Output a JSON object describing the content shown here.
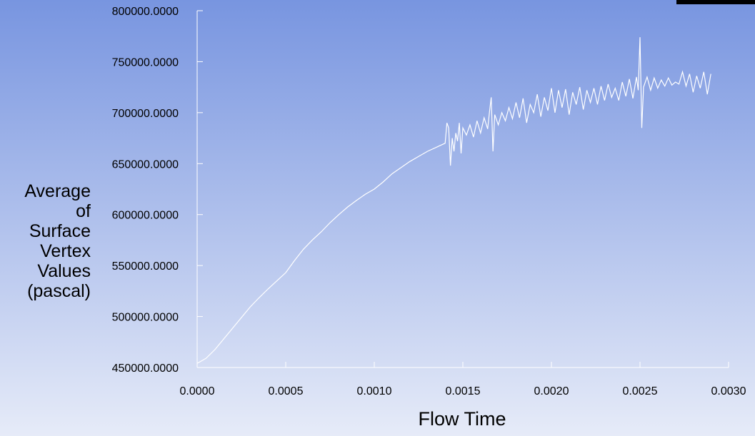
{
  "chart_data": {
    "type": "line",
    "x_label": "Flow Time",
    "y_label": [
      "Average",
      "of",
      "Surface",
      "Vertex",
      "Values",
      "(pascal)"
    ],
    "color": "#ffffff",
    "x": [
      0,
      5e-05,
      0.0001,
      0.00015,
      0.0002,
      0.00025,
      0.0003,
      0.00035,
      0.0004,
      0.00045,
      0.0005,
      0.00055,
      0.0006,
      0.00065,
      0.0007,
      0.00075,
      0.0008,
      0.00085,
      0.0009,
      0.00095,
      0.001,
      0.00105,
      0.0011,
      0.00115,
      0.0012,
      0.00125,
      0.0013,
      0.00135,
      0.0014,
      0.00141,
      0.00142,
      0.00143,
      0.00144,
      0.00145,
      0.00146,
      0.00147,
      0.00148,
      0.00149,
      0.0015,
      0.00152,
      0.00154,
      0.00156,
      0.00158,
      0.0016,
      0.00162,
      0.00164,
      0.00165,
      0.00166,
      0.00167,
      0.00168,
      0.0017,
      0.00172,
      0.00174,
      0.00176,
      0.00178,
      0.0018,
      0.00182,
      0.00184,
      0.00186,
      0.00188,
      0.0019,
      0.00192,
      0.00194,
      0.00196,
      0.00198,
      0.002,
      0.00202,
      0.00204,
      0.00206,
      0.00208,
      0.0021,
      0.00212,
      0.00214,
      0.00216,
      0.00218,
      0.0022,
      0.00222,
      0.00224,
      0.00226,
      0.00228,
      0.0023,
      0.00232,
      0.00234,
      0.00236,
      0.00238,
      0.0024,
      0.00242,
      0.00244,
      0.00246,
      0.00248,
      0.00249,
      0.0025,
      0.00251,
      0.00252,
      0.00254,
      0.00256,
      0.00258,
      0.0026,
      0.00262,
      0.00264,
      0.00266,
      0.00268,
      0.0027,
      0.00272,
      0.00274,
      0.00276,
      0.00278,
      0.0028,
      0.00282,
      0.00284,
      0.00286,
      0.00288,
      0.0029
    ],
    "values": [
      454000,
      459000,
      467500,
      478000,
      488500,
      499000,
      509500,
      518500,
      527000,
      535000,
      543000,
      555000,
      566000,
      575000,
      583000,
      592000,
      600000,
      607500,
      614000,
      620000,
      625000,
      632000,
      640000,
      646000,
      652000,
      657000,
      662000,
      666000,
      670000,
      690000,
      685000,
      648000,
      675000,
      662000,
      680000,
      672000,
      690000,
      660000,
      685000,
      678000,
      688000,
      676000,
      692000,
      680000,
      695000,
      684000,
      700000,
      715000,
      662000,
      698000,
      688000,
      700000,
      692000,
      705000,
      694000,
      710000,
      695000,
      714000,
      690000,
      708000,
      700000,
      718000,
      696000,
      715000,
      702000,
      724000,
      700000,
      722000,
      705000,
      723000,
      698000,
      720000,
      708000,
      725000,
      703000,
      722000,
      710000,
      724000,
      708000,
      726000,
      712000,
      728000,
      715000,
      724000,
      712000,
      730000,
      716000,
      733000,
      714000,
      735000,
      722000,
      774000,
      685000,
      725000,
      735000,
      722000,
      734000,
      724000,
      732000,
      726000,
      734000,
      727000,
      730000,
      728000,
      740000,
      726000,
      738000,
      720000,
      736000,
      724000,
      740000,
      718000,
      738000
    ],
    "xlim": [
      0,
      0.003
    ],
    "xticks": [
      {
        "value": 0,
        "label": "0.0000"
      },
      {
        "value": 0.0005,
        "label": "0.0005"
      },
      {
        "value": 0.001,
        "label": "0.0010"
      },
      {
        "value": 0.0015,
        "label": "0.0015"
      },
      {
        "value": 0.002,
        "label": "0.0020"
      },
      {
        "value": 0.0025,
        "label": "0.0025"
      },
      {
        "value": 0.003,
        "label": "0.0030"
      }
    ],
    "ylim": [
      450000,
      800000
    ],
    "yticks": [
      {
        "value": 450000,
        "label": "450000.0000"
      },
      {
        "value": 500000,
        "label": "500000.0000"
      },
      {
        "value": 550000,
        "label": "550000.0000"
      },
      {
        "value": 600000,
        "label": "600000.0000"
      },
      {
        "value": 650000,
        "label": "650000.0000"
      },
      {
        "value": 700000,
        "label": "700000.0000"
      },
      {
        "value": 750000,
        "label": "750000.0000"
      },
      {
        "value": 800000,
        "label": "800000.0000"
      }
    ]
  }
}
